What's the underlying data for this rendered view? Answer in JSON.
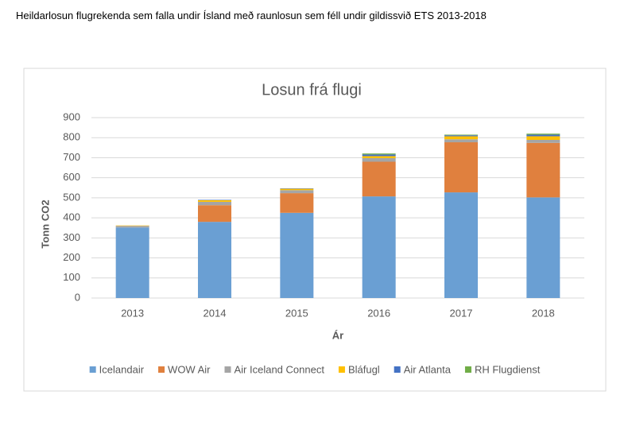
{
  "heading": "Heildarlosun flugrekenda sem falla undir Ísland með raunlosun sem féll undir gildissvið ETS 2013-2018",
  "chart_data": {
    "type": "stacked-bar",
    "title": "Losun frá flugi",
    "x_label": "Ár",
    "y_label": "Tonn CO2",
    "categories": [
      "2013",
      "2014",
      "2015",
      "2016",
      "2017",
      "2018"
    ],
    "series": [
      {
        "name": "Icelandair",
        "color": "#6a9fd3",
        "values": [
          352,
          380,
          425,
          507,
          527,
          502
        ]
      },
      {
        "name": "WOW Air",
        "color": "#e0803e",
        "values": [
          0,
          83,
          98,
          173,
          250,
          272
        ]
      },
      {
        "name": "Air Iceland Connect",
        "color": "#a5a5a5",
        "values": [
          8,
          17,
          15,
          18,
          15,
          15
        ]
      },
      {
        "name": "Bláfugl",
        "color": "#ffc000",
        "values": [
          2,
          8,
          7,
          10,
          15,
          18
        ]
      },
      {
        "name": "Air Atlanta",
        "color": "#4472c4",
        "values": [
          0,
          2,
          2,
          8,
          5,
          8
        ]
      },
      {
        "name": "RH Flugdienst",
        "color": "#70ad47",
        "values": [
          0,
          0,
          0,
          5,
          3,
          5
        ]
      }
    ],
    "ylim": [
      0,
      900
    ],
    "yticks": [
      0,
      100,
      200,
      300,
      400,
      500,
      600,
      700,
      800,
      900
    ],
    "grid": true,
    "legend": "bottom"
  }
}
